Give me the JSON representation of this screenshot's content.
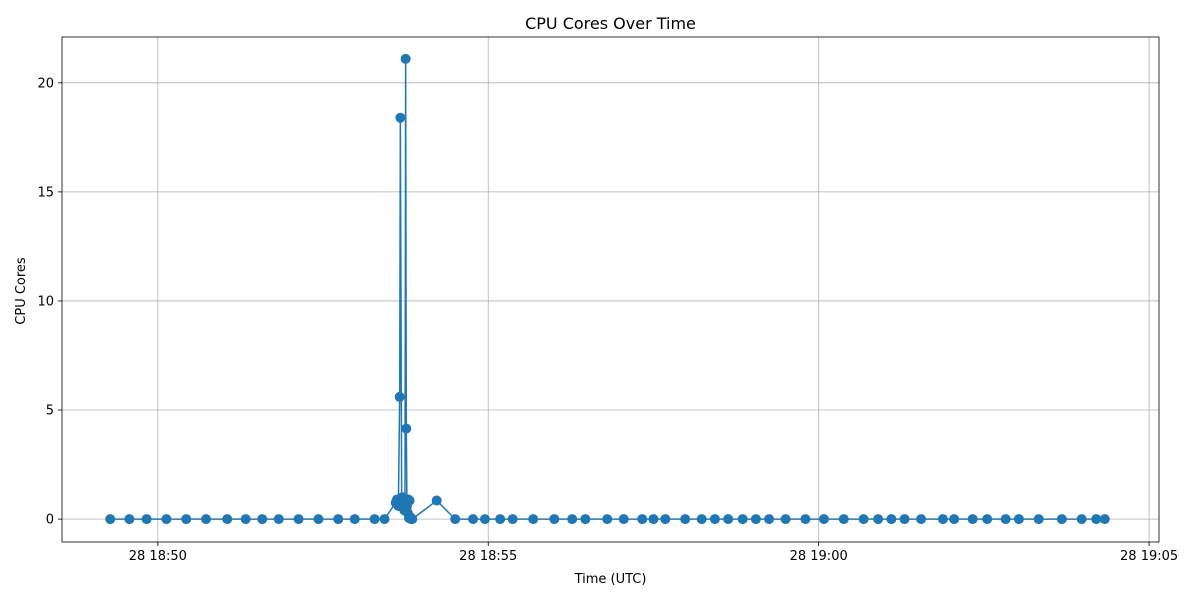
{
  "chart_data": {
    "type": "line",
    "title": "CPU Cores Over Time",
    "xlabel": "Time (UTC)",
    "ylabel": "CPU Cores",
    "grid": true,
    "legend": "none",
    "marker": "circle",
    "color": "#1f77b4",
    "x_ticks": [
      "28 18:50",
      "28 18:55",
      "28 19:00",
      "28 19:05"
    ],
    "x_tick_minutes": [
      0,
      5,
      10,
      15
    ],
    "y_ticks": [
      "0",
      "5",
      "10",
      "15",
      "20"
    ],
    "y_tick_values": [
      0,
      5,
      10,
      15,
      20
    ],
    "xlim_minutes": [
      -1.45,
      15.15
    ],
    "ylim": [
      -1.05,
      22.1
    ],
    "series": [
      {
        "x_minutes": [
          -0.72,
          -0.43,
          -0.17,
          0.13,
          0.43,
          0.73,
          1.05,
          1.33,
          1.58,
          1.83,
          2.13,
          2.43,
          2.73,
          2.98,
          3.28,
          3.43,
          3.6,
          3.62,
          3.64,
          3.66,
          3.67,
          3.69,
          3.7,
          3.71,
          3.72,
          3.73,
          3.74,
          3.75,
          3.76,
          3.77,
          3.78,
          3.79,
          3.8,
          3.81,
          3.82,
          3.83,
          3.85,
          4.22,
          4.5,
          4.77,
          4.95,
          5.18,
          5.37,
          5.68,
          6.0,
          6.27,
          6.47,
          6.8,
          7.05,
          7.33,
          7.5,
          7.68,
          7.98,
          8.23,
          8.43,
          8.63,
          8.85,
          9.05,
          9.25,
          9.5,
          9.8,
          10.08,
          10.38,
          10.68,
          10.9,
          11.1,
          11.3,
          11.55,
          11.88,
          12.05,
          12.33,
          12.55,
          12.83,
          13.03,
          13.33,
          13.68,
          13.98,
          14.2,
          14.33
        ],
        "y": [
          0,
          0,
          0,
          0,
          0,
          0,
          0,
          0,
          0,
          0,
          0,
          0,
          0,
          0,
          0,
          0,
          0.75,
          0.9,
          0.6,
          5.6,
          18.4,
          0.8,
          1.0,
          0.7,
          0.9,
          0.4,
          0.5,
          21.1,
          4.15,
          0.6,
          0.3,
          0.9,
          0.05,
          0.85,
          0.1,
          0,
          0,
          0.85,
          0,
          0,
          0,
          0,
          0,
          0,
          0,
          0,
          0,
          0,
          0,
          0,
          0,
          0,
          0,
          0,
          0,
          0,
          0,
          0,
          0,
          0,
          0,
          0,
          0,
          0,
          0,
          0,
          0,
          0,
          0,
          0,
          0,
          0,
          0,
          0,
          0,
          0,
          0,
          0,
          0
        ]
      }
    ]
  }
}
